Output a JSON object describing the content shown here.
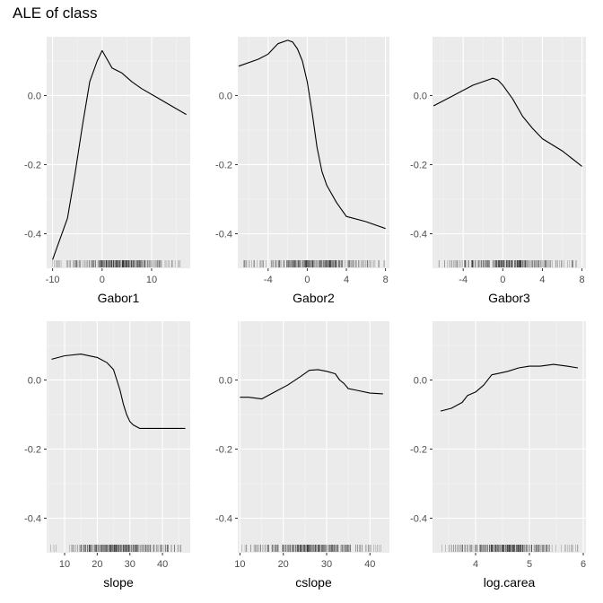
{
  "title": "ALE of class",
  "colors": {
    "panel_bg": "#ebebeb",
    "grid_major": "#ffffff",
    "grid_minor": "#f5f5f5",
    "line": "#000000",
    "tick_label": "#4d4d4d",
    "axis_title": "#000000"
  },
  "chart_data": [
    {
      "type": "line",
      "xlabel": "Gabor1",
      "xlim": [
        -11.2,
        17.8
      ],
      "ylim": [
        -0.5,
        0.17
      ],
      "xticks": [
        -10,
        0,
        10
      ],
      "yticks": [
        -0.4,
        -0.2,
        0.0
      ],
      "ytick_labels": [
        "-0.4",
        "-0.2",
        "0.0"
      ],
      "y_labels_shown": true,
      "rug": true,
      "rug_range": [
        -10,
        17
      ],
      "x": [
        -10,
        -7,
        -5.5,
        -4,
        -2.5,
        -1,
        0,
        1,
        2,
        4,
        6,
        8,
        11,
        14,
        17
      ],
      "y": [
        -0.475,
        -0.355,
        -0.23,
        -0.09,
        0.04,
        0.1,
        0.13,
        0.105,
        0.08,
        0.065,
        0.04,
        0.02,
        -0.005,
        -0.03,
        -0.055
      ]
    },
    {
      "type": "line",
      "xlabel": "Gabor2",
      "xlim": [
        -7.1,
        8.4
      ],
      "ylim": [
        -0.5,
        0.17
      ],
      "xticks": [
        -4,
        0,
        4,
        8
      ],
      "yticks": [
        -0.4,
        -0.2,
        0.0
      ],
      "ytick_labels": [
        "-0.4",
        "-0.2",
        "0.0"
      ],
      "y_labels_shown": true,
      "rug": true,
      "rug_range": [
        -6.5,
        8
      ],
      "x": [
        -7,
        -5,
        -4,
        -3,
        -2,
        -1.5,
        -1,
        -0.5,
        0,
        0.5,
        1,
        1.5,
        2,
        3,
        4,
        6,
        8
      ],
      "y": [
        0.085,
        0.105,
        0.12,
        0.15,
        0.16,
        0.155,
        0.135,
        0.1,
        0.04,
        -0.05,
        -0.15,
        -0.22,
        -0.26,
        -0.31,
        -0.35,
        -0.365,
        -0.385
      ]
    },
    {
      "type": "line",
      "xlabel": "Gabor3",
      "xlim": [
        -7.1,
        8.4
      ],
      "ylim": [
        -0.5,
        0.17
      ],
      "xticks": [
        -4,
        0,
        4,
        8
      ],
      "yticks": [
        -0.4,
        -0.2,
        0.0
      ],
      "ytick_labels": [
        "-0.4",
        "-0.2",
        "0.0"
      ],
      "y_labels_shown": true,
      "rug": true,
      "rug_range": [
        -6.5,
        7.5
      ],
      "x": [
        -7,
        -5,
        -3,
        -1.5,
        -1,
        -0.5,
        0,
        1,
        2,
        3,
        4,
        6,
        8
      ],
      "y": [
        -0.03,
        0.0,
        0.03,
        0.045,
        0.05,
        0.045,
        0.03,
        -0.01,
        -0.06,
        -0.095,
        -0.125,
        -0.16,
        -0.205
      ]
    },
    {
      "type": "line",
      "xlabel": "slope",
      "xlim": [
        4.5,
        48.5
      ],
      "ylim": [
        -0.5,
        0.17
      ],
      "xticks": [
        10,
        20,
        30,
        40
      ],
      "yticks": [
        -0.4,
        -0.2,
        0.0
      ],
      "ytick_labels": [
        "-0.4",
        "-0.2",
        "0.0"
      ],
      "y_labels_shown": true,
      "rug": true,
      "rug_range": [
        5.5,
        47
      ],
      "x": [
        6,
        10,
        15,
        20,
        23,
        25,
        26,
        27,
        28,
        29,
        30,
        31,
        33,
        36,
        40,
        47
      ],
      "y": [
        0.06,
        0.07,
        0.075,
        0.065,
        0.05,
        0.03,
        0.0,
        -0.03,
        -0.07,
        -0.1,
        -0.12,
        -0.13,
        -0.14,
        -0.14,
        -0.14,
        -0.14
      ]
    },
    {
      "type": "line",
      "xlabel": "cslope",
      "xlim": [
        9.5,
        44.5
      ],
      "ylim": [
        -0.5,
        0.17
      ],
      "xticks": [
        10,
        20,
        30,
        40
      ],
      "yticks": [
        -0.4,
        -0.2,
        0.0
      ],
      "ytick_labels": [
        "-0.4",
        "-0.2",
        "0.0"
      ],
      "y_labels_shown": true,
      "rug": true,
      "rug_range": [
        10,
        43.5
      ],
      "x": [
        10,
        12,
        15,
        18,
        21,
        24,
        26,
        28,
        30,
        32,
        33,
        34,
        35,
        37,
        40,
        43
      ],
      "y": [
        -0.05,
        -0.05,
        -0.055,
        -0.035,
        -0.015,
        0.01,
        0.028,
        0.03,
        0.025,
        0.018,
        0.0,
        -0.01,
        -0.025,
        -0.03,
        -0.038,
        -0.04
      ]
    },
    {
      "type": "line",
      "xlabel": "log.carea",
      "xlim": [
        3.2,
        6.05
      ],
      "ylim": [
        -0.5,
        0.17
      ],
      "xticks": [
        4,
        5,
        6
      ],
      "yticks": [
        -0.4,
        -0.2,
        0.0
      ],
      "ytick_labels": [
        "-0.4",
        "-0.2",
        "0.0"
      ],
      "y_labels_shown": true,
      "rug": true,
      "rug_range": [
        3.3,
        5.9
      ],
      "x": [
        3.35,
        3.55,
        3.75,
        3.85,
        4.0,
        4.15,
        4.3,
        4.45,
        4.6,
        4.8,
        5.0,
        5.2,
        5.45,
        5.7,
        5.9
      ],
      "y": [
        -0.09,
        -0.082,
        -0.065,
        -0.045,
        -0.035,
        -0.015,
        0.015,
        0.02,
        0.025,
        0.035,
        0.04,
        0.04,
        0.045,
        0.04,
        0.035
      ]
    }
  ]
}
